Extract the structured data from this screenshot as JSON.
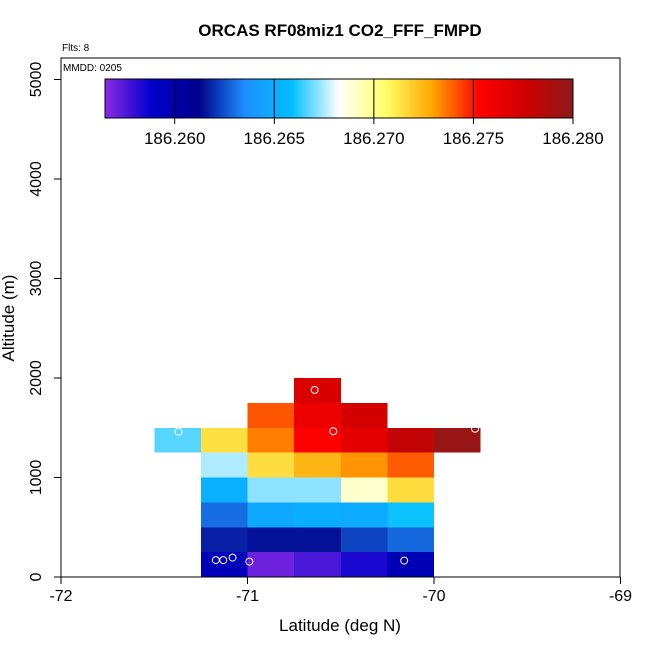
{
  "chart_data": {
    "type": "heatmap",
    "title": "ORCAS RF08miz1 CO2_FFF_FMPD",
    "xlabel": "Latitude (deg N)",
    "ylabel": "Altitude (m)",
    "xlim": [
      -72,
      -69
    ],
    "ylim": [
      0,
      5200
    ],
    "xticks": [
      -72,
      -71,
      -70,
      -69
    ],
    "yticks": [
      0,
      1000,
      2000,
      3000,
      4000,
      5000
    ],
    "flights_label": "Flts: 8",
    "mmdd_label": "MMDD: 0205",
    "colorbar": {
      "min": 186.2565,
      "max": 186.28,
      "ticks": [
        186.26,
        186.265,
        186.27,
        186.275,
        186.28
      ],
      "tick_labels": [
        "186.260",
        "186.265",
        "186.270",
        "186.275",
        "186.280"
      ],
      "colors": [
        "#8a2be2",
        "#0000cd",
        "#00008b",
        "#1e90ff",
        "#00bfff",
        "#ffffff",
        "#ffff66",
        "#ffa500",
        "#ff0000",
        "#cd0000",
        "#8b1a1a"
      ]
    },
    "cell_size": {
      "lat": 0.25,
      "alt": 250
    },
    "cells": [
      {
        "lat": -71.125,
        "alt": 125,
        "value": 186.2595
      },
      {
        "lat": -70.875,
        "alt": 125,
        "value": 186.257
      },
      {
        "lat": -70.625,
        "alt": 125,
        "value": 186.2576
      },
      {
        "lat": -70.375,
        "alt": 125,
        "value": 186.2584
      },
      {
        "lat": -70.125,
        "alt": 125,
        "value": 186.2597
      },
      {
        "lat": -71.125,
        "alt": 375,
        "value": 186.2617
      },
      {
        "lat": -70.875,
        "alt": 375,
        "value": 186.2615
      },
      {
        "lat": -70.625,
        "alt": 375,
        "value": 186.2615
      },
      {
        "lat": -70.375,
        "alt": 375,
        "value": 186.2623
      },
      {
        "lat": -70.125,
        "alt": 375,
        "value": 186.2629
      },
      {
        "lat": -71.125,
        "alt": 625,
        "value": 186.263
      },
      {
        "lat": -70.875,
        "alt": 625,
        "value": 186.2648
      },
      {
        "lat": -70.625,
        "alt": 625,
        "value": 186.265
      },
      {
        "lat": -70.375,
        "alt": 625,
        "value": 186.2649
      },
      {
        "lat": -70.125,
        "alt": 625,
        "value": 186.266
      },
      {
        "lat": -71.125,
        "alt": 875,
        "value": 186.2651
      },
      {
        "lat": -70.875,
        "alt": 875,
        "value": 186.2672
      },
      {
        "lat": -70.625,
        "alt": 875,
        "value": 186.2672
      },
      {
        "lat": -70.375,
        "alt": 875,
        "value": 186.269
      },
      {
        "lat": -70.125,
        "alt": 875,
        "value": 186.2715
      },
      {
        "lat": -71.125,
        "alt": 1125,
        "value": 186.2675
      },
      {
        "lat": -70.875,
        "alt": 1125,
        "value": 186.2715
      },
      {
        "lat": -70.625,
        "alt": 1125,
        "value": 186.2725
      },
      {
        "lat": -70.375,
        "alt": 1125,
        "value": 186.2732
      },
      {
        "lat": -70.125,
        "alt": 1125,
        "value": 186.274
      },
      {
        "lat": -71.375,
        "alt": 1375,
        "value": 186.2667
      },
      {
        "lat": -71.125,
        "alt": 1375,
        "value": 186.2714
      },
      {
        "lat": -70.875,
        "alt": 1375,
        "value": 186.2735
      },
      {
        "lat": -70.625,
        "alt": 1375,
        "value": 186.2753
      },
      {
        "lat": -70.375,
        "alt": 1375,
        "value": 186.2765
      },
      {
        "lat": -70.125,
        "alt": 1375,
        "value": 186.278
      },
      {
        "lat": -69.875,
        "alt": 1375,
        "value": 186.2795
      },
      {
        "lat": -70.875,
        "alt": 1625,
        "value": 186.2741
      },
      {
        "lat": -70.625,
        "alt": 1625,
        "value": 186.2762
      },
      {
        "lat": -70.375,
        "alt": 1625,
        "value": 186.2773
      },
      {
        "lat": -70.625,
        "alt": 1875,
        "value": 186.277
      }
    ],
    "points": [
      {
        "lat": -71.17,
        "alt": 170
      },
      {
        "lat": -71.13,
        "alt": 170
      },
      {
        "lat": -71.08,
        "alt": 195
      },
      {
        "lat": -70.99,
        "alt": 155
      },
      {
        "lat": -70.16,
        "alt": 165
      },
      {
        "lat": -71.37,
        "alt": 1460
      },
      {
        "lat": -70.54,
        "alt": 1465
      },
      {
        "lat": -69.78,
        "alt": 1490
      },
      {
        "lat": -70.64,
        "alt": 1880
      }
    ]
  }
}
